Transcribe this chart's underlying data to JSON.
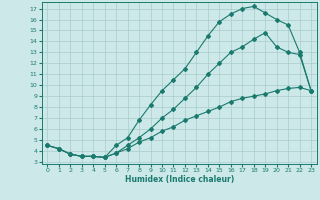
{
  "xlabel": "Humidex (Indice chaleur)",
  "bg_color": "#cce8e8",
  "grid_color": "#aacccc",
  "line_color": "#1a7a6e",
  "xlim": [
    -0.5,
    23.5
  ],
  "ylim": [
    2.8,
    17.6
  ],
  "xticks": [
    0,
    1,
    2,
    3,
    4,
    5,
    6,
    7,
    8,
    9,
    10,
    11,
    12,
    13,
    14,
    15,
    16,
    17,
    18,
    19,
    20,
    21,
    22,
    23
  ],
  "yticks": [
    3,
    4,
    5,
    6,
    7,
    8,
    9,
    10,
    11,
    12,
    13,
    14,
    15,
    16,
    17
  ],
  "line1_x": [
    0,
    1,
    2,
    3,
    4,
    5,
    6,
    7,
    8,
    9,
    10,
    11,
    12,
    13,
    14,
    15,
    16,
    17,
    18,
    19,
    20,
    21,
    22,
    23
  ],
  "line1_y": [
    4.5,
    4.2,
    3.7,
    3.5,
    3.5,
    3.4,
    4.5,
    5.2,
    6.8,
    8.2,
    9.5,
    10.5,
    11.5,
    13.0,
    14.5,
    15.8,
    16.5,
    17.0,
    17.2,
    16.6,
    16.0,
    15.5,
    13.0,
    9.5
  ],
  "line2_x": [
    0,
    1,
    2,
    3,
    4,
    5,
    6,
    7,
    8,
    9,
    10,
    11,
    12,
    13,
    14,
    15,
    16,
    17,
    18,
    19,
    20,
    21,
    22,
    23
  ],
  "line2_y": [
    4.5,
    4.2,
    3.7,
    3.5,
    3.5,
    3.4,
    3.8,
    4.5,
    5.2,
    6.0,
    7.0,
    7.8,
    8.8,
    9.8,
    11.0,
    12.0,
    13.0,
    13.5,
    14.2,
    14.8,
    13.5,
    13.0,
    12.8,
    9.5
  ],
  "line3_x": [
    0,
    1,
    2,
    3,
    4,
    5,
    6,
    7,
    8,
    9,
    10,
    11,
    12,
    13,
    14,
    15,
    16,
    17,
    18,
    19,
    20,
    21,
    22,
    23
  ],
  "line3_y": [
    4.5,
    4.2,
    3.7,
    3.5,
    3.5,
    3.4,
    3.8,
    4.2,
    4.8,
    5.2,
    5.8,
    6.2,
    6.8,
    7.2,
    7.6,
    8.0,
    8.5,
    8.8,
    9.0,
    9.2,
    9.5,
    9.7,
    9.8,
    9.5
  ]
}
